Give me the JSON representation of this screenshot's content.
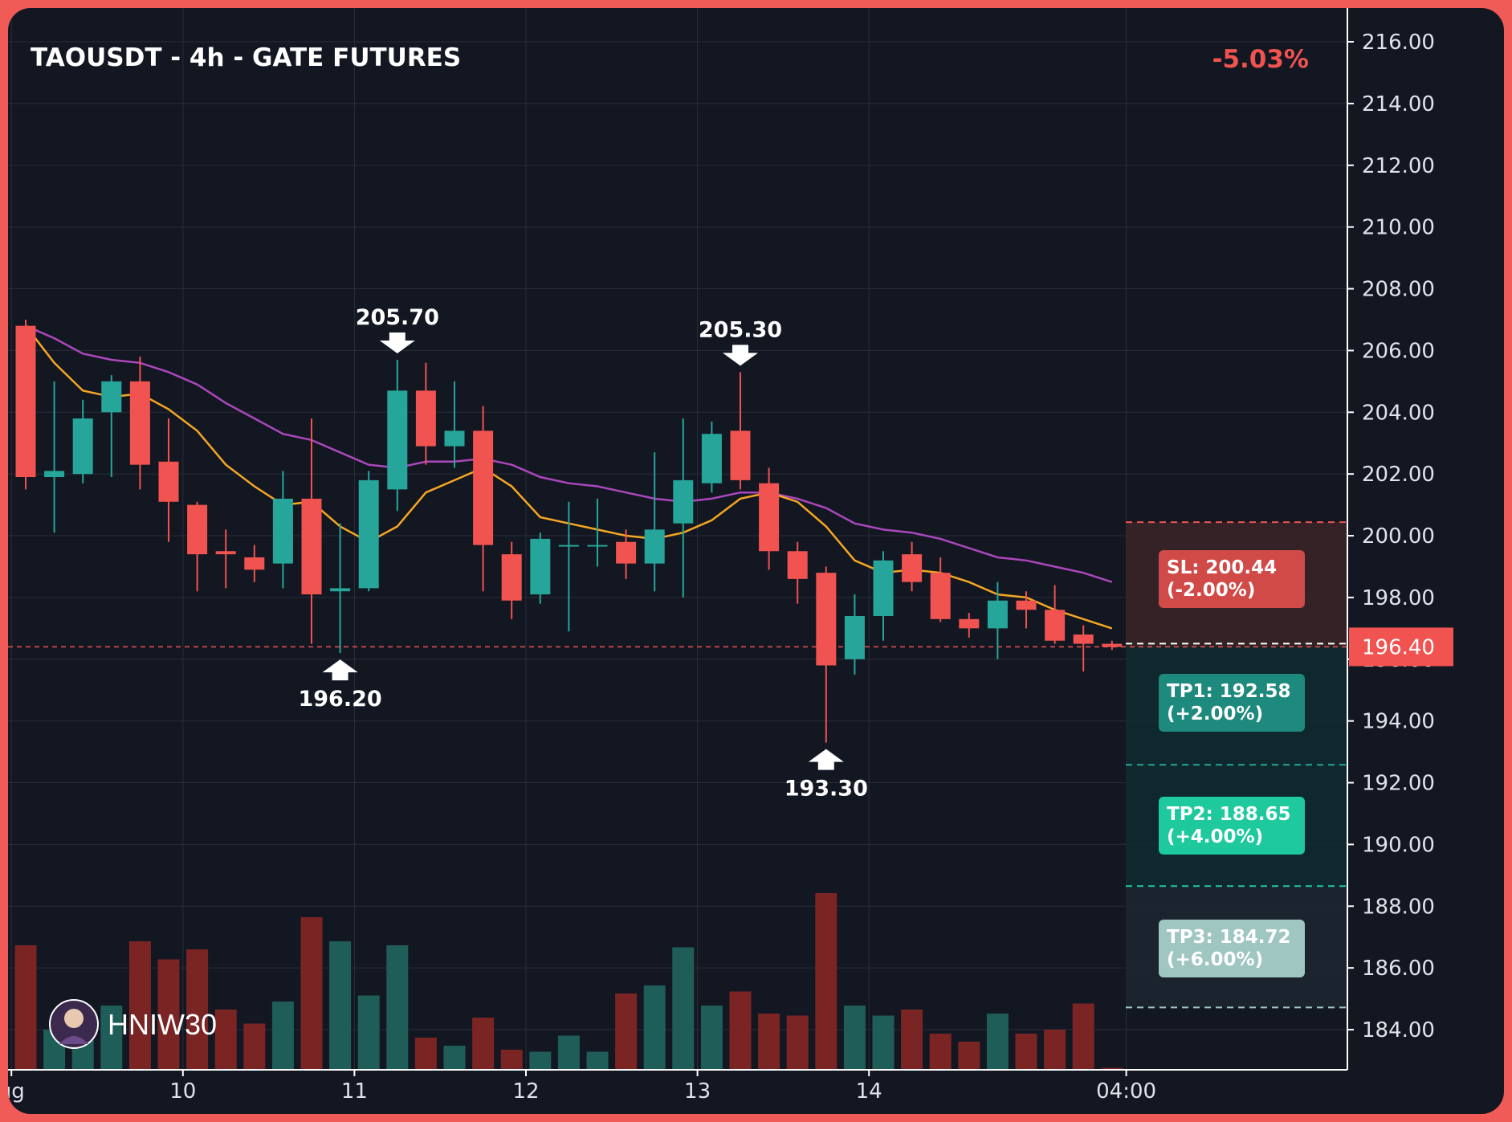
{
  "header": {
    "title": "TAOUSDT - 4h - GATE FUTURES",
    "change": "-5.03%"
  },
  "watermark": {
    "handle": "HNIW30"
  },
  "colors": {
    "background": "#131722",
    "up": "#26a69a",
    "down": "#f05350",
    "ma_fast": "#f5a623",
    "ma_slow": "#ab47bc",
    "grid": "#2a2e39",
    "tp1": "#1e8a7e",
    "tp2": "#1ec99e",
    "tp3": "#9fc6c1",
    "sl": "#d04a48"
  },
  "chart_data": {
    "type": "candlestick",
    "symbol": "TAOUSDT",
    "interval": "4h",
    "exchange": "GATE FUTURES",
    "y_ticks": [
      "216.00",
      "214.00",
      "212.00",
      "210.00",
      "208.00",
      "206.00",
      "204.00",
      "202.00",
      "200.00",
      "198.00",
      "196.00",
      "194.00",
      "192.00",
      "190.00",
      "188.00",
      "186.00",
      "184.00"
    ],
    "ylim": [
      182.7,
      216.6
    ],
    "x_ticks": [
      {
        "label": "ug",
        "index": -0.5
      },
      {
        "label": "10",
        "index": 5.5
      },
      {
        "label": "11",
        "index": 11.5
      },
      {
        "label": "12",
        "index": 17.5
      },
      {
        "label": "13",
        "index": 23.5
      },
      {
        "label": "14",
        "index": 29.5
      },
      {
        "label": "04:00",
        "index": 38.5
      }
    ],
    "candles": [
      {
        "o": 206.8,
        "h": 207.0,
        "l": 201.5,
        "c": 201.9,
        "v": 0.62
      },
      {
        "o": 201.9,
        "h": 205.0,
        "l": 200.1,
        "c": 202.1,
        "v": 0.2
      },
      {
        "o": 202.0,
        "h": 204.4,
        "l": 201.7,
        "c": 203.8,
        "v": 0.15
      },
      {
        "o": 204.0,
        "h": 205.2,
        "l": 201.9,
        "c": 205.0,
        "v": 0.32
      },
      {
        "o": 205.0,
        "h": 205.8,
        "l": 201.5,
        "c": 202.3,
        "v": 0.64
      },
      {
        "o": 202.4,
        "h": 203.8,
        "l": 199.8,
        "c": 201.1,
        "v": 0.55
      },
      {
        "o": 201.0,
        "h": 201.1,
        "l": 198.2,
        "c": 199.4,
        "v": 0.6
      },
      {
        "o": 199.5,
        "h": 200.2,
        "l": 198.3,
        "c": 199.4,
        "v": 0.3
      },
      {
        "o": 199.3,
        "h": 199.7,
        "l": 198.5,
        "c": 198.9,
        "v": 0.23
      },
      {
        "o": 199.1,
        "h": 202.1,
        "l": 198.3,
        "c": 201.2,
        "v": 0.34
      },
      {
        "o": 201.2,
        "h": 203.8,
        "l": 196.5,
        "c": 198.1,
        "v": 0.76
      },
      {
        "o": 198.2,
        "h": 200.4,
        "l": 196.2,
        "c": 198.3,
        "v": 0.64
      },
      {
        "o": 198.3,
        "h": 202.1,
        "l": 198.2,
        "c": 201.8,
        "v": 0.37
      },
      {
        "o": 201.5,
        "h": 205.7,
        "l": 200.8,
        "c": 204.7,
        "v": 0.62
      },
      {
        "o": 204.7,
        "h": 205.6,
        "l": 202.3,
        "c": 202.9,
        "v": 0.16
      },
      {
        "o": 202.9,
        "h": 205.0,
        "l": 202.2,
        "c": 203.4,
        "v": 0.12
      },
      {
        "o": 203.4,
        "h": 204.2,
        "l": 198.2,
        "c": 199.7,
        "v": 0.26
      },
      {
        "o": 199.4,
        "h": 199.8,
        "l": 197.3,
        "c": 197.9,
        "v": 0.1
      },
      {
        "o": 198.1,
        "h": 200.1,
        "l": 197.8,
        "c": 199.9,
        "v": 0.09
      },
      {
        "o": 199.7,
        "h": 201.1,
        "l": 196.9,
        "c": 199.7,
        "v": 0.17
      },
      {
        "o": 199.7,
        "h": 201.2,
        "l": 199.0,
        "c": 199.7,
        "v": 0.09
      },
      {
        "o": 199.8,
        "h": 200.2,
        "l": 198.6,
        "c": 199.1,
        "v": 0.38
      },
      {
        "o": 199.1,
        "h": 202.7,
        "l": 198.2,
        "c": 200.2,
        "v": 0.42
      },
      {
        "o": 200.4,
        "h": 203.8,
        "l": 198.0,
        "c": 201.8,
        "v": 0.61
      },
      {
        "o": 201.7,
        "h": 203.7,
        "l": 201.4,
        "c": 203.3,
        "v": 0.32
      },
      {
        "o": 203.4,
        "h": 205.3,
        "l": 201.5,
        "c": 201.8,
        "v": 0.39
      },
      {
        "o": 201.7,
        "h": 202.2,
        "l": 198.9,
        "c": 199.5,
        "v": 0.28
      },
      {
        "o": 199.5,
        "h": 199.8,
        "l": 197.8,
        "c": 198.6,
        "v": 0.27
      },
      {
        "o": 198.8,
        "h": 199.0,
        "l": 193.3,
        "c": 195.8,
        "v": 0.88
      },
      {
        "o": 196.0,
        "h": 198.1,
        "l": 195.5,
        "c": 197.4,
        "v": 0.32
      },
      {
        "o": 197.4,
        "h": 199.5,
        "l": 196.6,
        "c": 199.2,
        "v": 0.27
      },
      {
        "o": 199.4,
        "h": 199.8,
        "l": 198.2,
        "c": 198.5,
        "v": 0.3
      },
      {
        "o": 198.8,
        "h": 199.3,
        "l": 197.2,
        "c": 197.3,
        "v": 0.18
      },
      {
        "o": 197.3,
        "h": 197.5,
        "l": 196.7,
        "c": 197.0,
        "v": 0.14
      },
      {
        "o": 197.0,
        "h": 198.5,
        "l": 196.0,
        "c": 197.9,
        "v": 0.28
      },
      {
        "o": 197.9,
        "h": 198.2,
        "l": 197.0,
        "c": 197.6,
        "v": 0.18
      },
      {
        "o": 197.6,
        "h": 198.4,
        "l": 196.5,
        "c": 196.6,
        "v": 0.2
      },
      {
        "o": 196.8,
        "h": 197.1,
        "l": 195.6,
        "c": 196.5,
        "v": 0.33
      },
      {
        "o": 196.5,
        "h": 196.6,
        "l": 196.3,
        "c": 196.4,
        "v": 0.01
      }
    ],
    "ma_fast": [
      206.8,
      205.6,
      204.7,
      204.5,
      204.6,
      204.1,
      203.4,
      202.3,
      201.6,
      201.0,
      201.1,
      200.3,
      199.8,
      200.3,
      201.4,
      201.8,
      202.2,
      201.6,
      200.6,
      200.4,
      200.2,
      200.0,
      199.9,
      200.1,
      200.5,
      201.2,
      201.4,
      201.1,
      200.3,
      199.2,
      198.8,
      198.9,
      198.8,
      198.5,
      198.1,
      198.0,
      197.6,
      197.3,
      197.0
    ],
    "ma_slow": [
      206.8,
      206.4,
      205.9,
      205.7,
      205.6,
      205.3,
      204.9,
      204.3,
      203.8,
      203.3,
      203.1,
      202.7,
      202.3,
      202.2,
      202.4,
      202.4,
      202.5,
      202.3,
      201.9,
      201.7,
      201.6,
      201.4,
      201.2,
      201.1,
      201.2,
      201.4,
      201.4,
      201.2,
      200.9,
      200.4,
      200.2,
      200.1,
      199.9,
      199.6,
      199.3,
      199.2,
      199.0,
      198.8,
      198.5
    ],
    "current_price": "196.40",
    "annotations": [
      {
        "label": "205.70",
        "type": "high",
        "index": 13,
        "price": 205.7
      },
      {
        "label": "205.30",
        "type": "high",
        "index": 25,
        "price": 205.3
      },
      {
        "label": "196.20",
        "type": "low",
        "index": 11,
        "price": 196.2
      },
      {
        "label": "193.30",
        "type": "low",
        "index": 28,
        "price": 193.3
      }
    ],
    "levels": {
      "sl": {
        "price": 200.44,
        "text1": "SL: 200.44",
        "text2": "(-2.00%)"
      },
      "tp1": {
        "price": 192.58,
        "text1": "TP1: 192.58",
        "text2": "(+2.00%)"
      },
      "tp2": {
        "price": 188.65,
        "text1": "TP2: 188.65",
        "text2": "(+4.00%)"
      },
      "tp3": {
        "price": 184.72,
        "text1": "TP3: 184.72",
        "text2": "(+6.00%)"
      }
    }
  }
}
